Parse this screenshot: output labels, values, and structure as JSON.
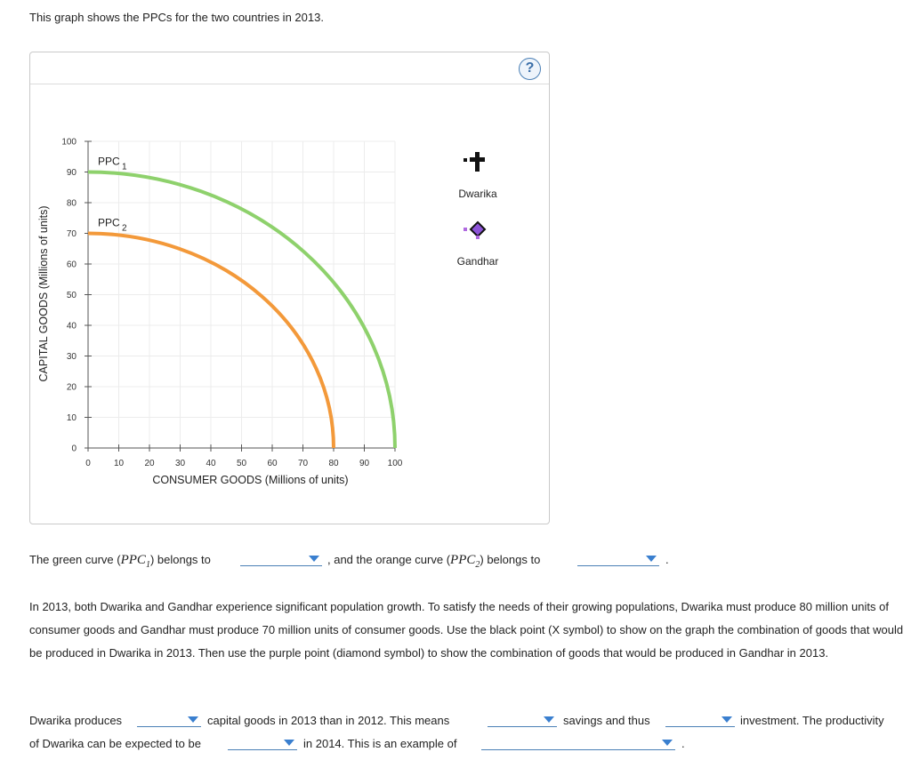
{
  "intro_text": "This graph shows the PPCs for the two countries in 2013.",
  "help_label": "?",
  "chart_data": {
    "type": "line",
    "xlabel": "CONSUMER GOODS (Millions of units)",
    "ylabel": "CAPITAL GOODS (Millions of units)",
    "xlim": [
      0,
      100
    ],
    "ylim": [
      0,
      100
    ],
    "x_ticks": [
      "0",
      "10",
      "20",
      "30",
      "40",
      "50",
      "60",
      "70",
      "80",
      "90",
      "100"
    ],
    "y_ticks": [
      "0",
      "10",
      "20",
      "30",
      "40",
      "50",
      "60",
      "70",
      "80",
      "90",
      "100"
    ],
    "grid": true,
    "series": [
      {
        "name": "PPC1",
        "label_main": "PPC",
        "label_sub": "1",
        "color": "#8ed16c",
        "x_intercept": 100,
        "y_intercept": 90
      },
      {
        "name": "PPC2",
        "label_main": "PPC",
        "label_sub": "2",
        "color": "#f3993a",
        "x_intercept": 80,
        "y_intercept": 70
      }
    ],
    "legend": [
      {
        "label": "Dwarika",
        "marker": "plus-icon",
        "color": "#111111"
      },
      {
        "label": "Gandhar",
        "marker": "diamond-icon",
        "color": "#b06ae0"
      }
    ]
  },
  "q1": {
    "part1": "The green curve (",
    "ppc1_main": "PPC",
    "ppc1_sub": "1",
    "part2": ") belongs to",
    "part3": ", and the orange curve (",
    "ppc2_main": "PPC",
    "ppc2_sub": "2",
    "part4": ") belongs to",
    "end": "."
  },
  "paragraph": "In 2013, both Dwarika and Gandhar experience significant population growth. To satisfy the needs of their growing populations, Dwarika must produce 80 million units of consumer goods and Gandhar must produce 70 million units of consumer goods. Use the black point (X symbol) to show on the graph the combination of goods that would be produced in Dwarika in 2013. Then use the purple point (diamond symbol) to show the combination of goods that would be produced in Gandhar in 2013.",
  "q2": {
    "a": "Dwarika produces",
    "b": "capital goods in 2013 than in 2012. This means",
    "c": "savings and thus",
    "d": "investment. The productivity",
    "e": "of Dwarika can be expected to be",
    "f": "in 2014. This is an example of",
    "end": "."
  }
}
